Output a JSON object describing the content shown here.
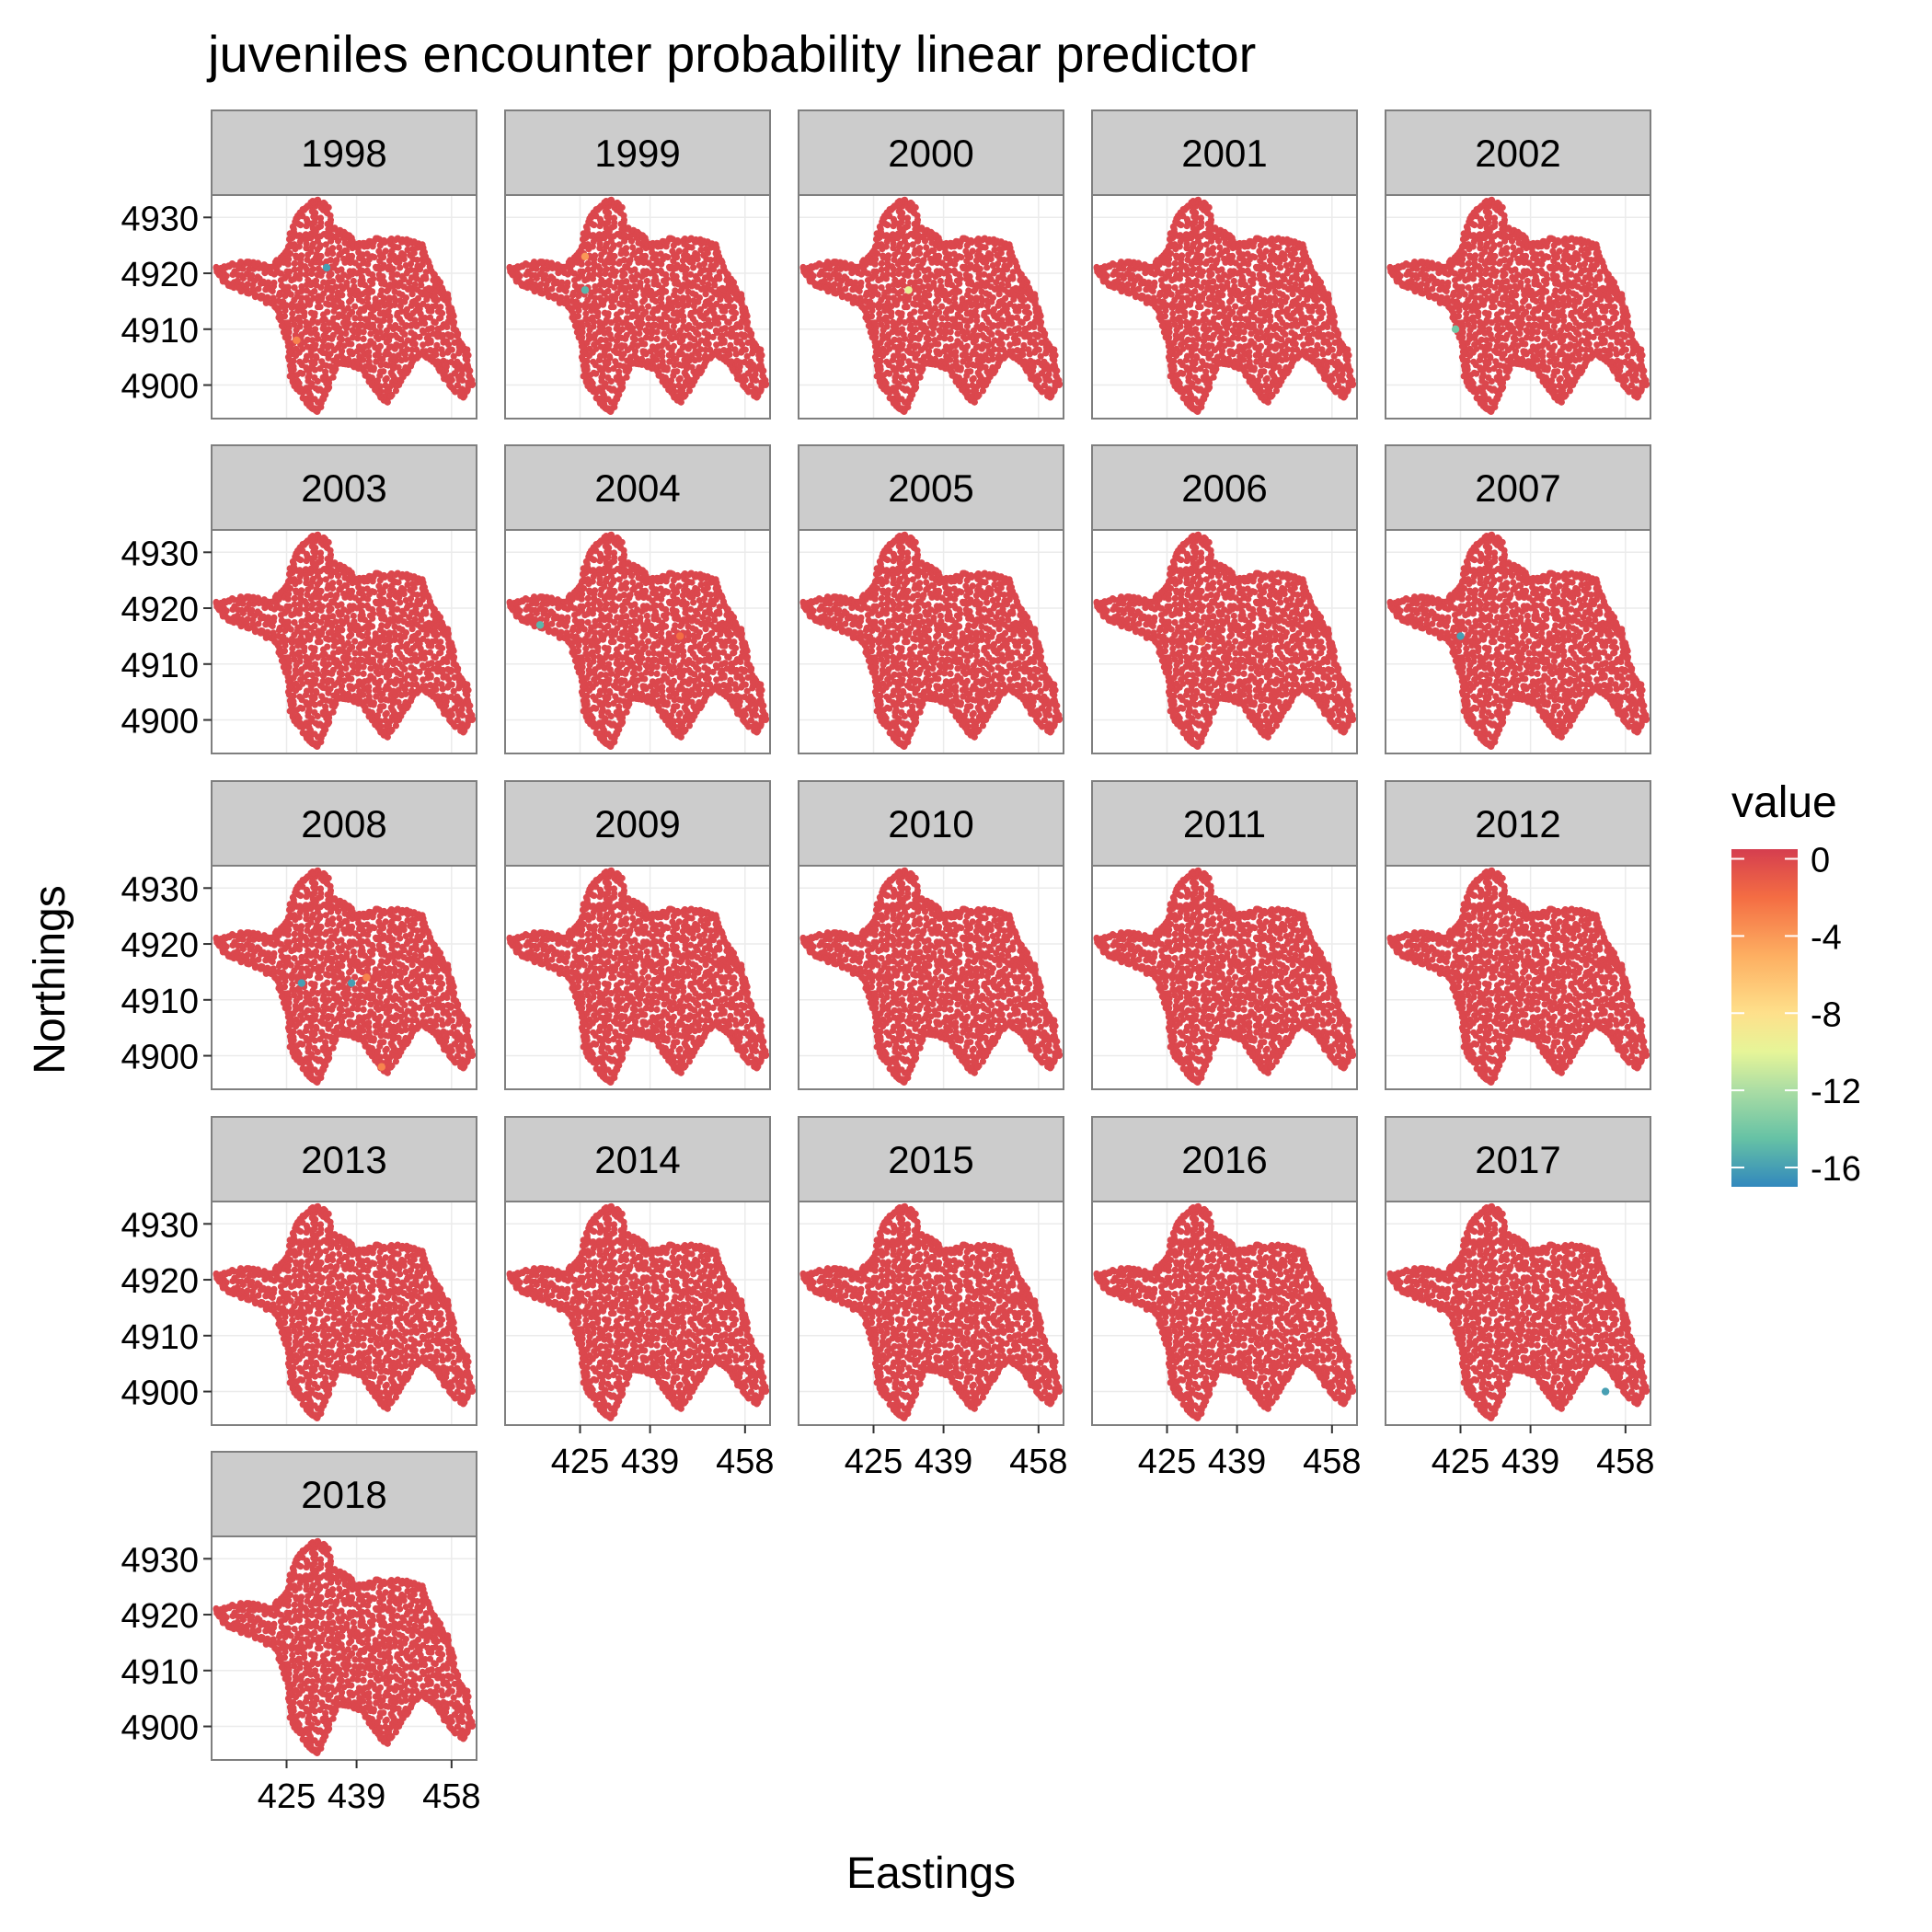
{
  "chart_data": {
    "type": "scatter",
    "title": "juveniles encounter probability linear predictor",
    "xlabel": "Eastings",
    "ylabel": "Northings",
    "panels": [
      "1998",
      "1999",
      "2000",
      "2001",
      "2002",
      "2003",
      "2004",
      "2005",
      "2006",
      "2007",
      "2008",
      "2009",
      "2010",
      "2011",
      "2012",
      "2013",
      "2014",
      "2015",
      "2016",
      "2017",
      "2018"
    ],
    "ncol": 5,
    "xlim": [
      410,
      463
    ],
    "ylim": [
      4894,
      4934
    ],
    "x_ticks": [
      425,
      439,
      458
    ],
    "x_tick_labels": [
      "425",
      "439",
      "458"
    ],
    "y_ticks": [
      4900,
      4910,
      4920,
      4930
    ],
    "y_tick_labels": [
      "4900",
      "4910",
      "4920",
      "4930"
    ],
    "base_value": 0,
    "region_outline": [
      [
        411,
        4921
      ],
      [
        417,
        4922
      ],
      [
        422,
        4921
      ],
      [
        425,
        4924
      ],
      [
        427,
        4930
      ],
      [
        429,
        4932
      ],
      [
        431,
        4933
      ],
      [
        433,
        4932
      ],
      [
        434,
        4928
      ],
      [
        437,
        4927
      ],
      [
        439,
        4925
      ],
      [
        443,
        4926
      ],
      [
        448,
        4926
      ],
      [
        452,
        4925
      ],
      [
        453,
        4922
      ],
      [
        455,
        4919
      ],
      [
        457,
        4916
      ],
      [
        458,
        4913
      ],
      [
        459,
        4909
      ],
      [
        461,
        4906
      ],
      [
        462,
        4900
      ],
      [
        460,
        4898
      ],
      [
        457,
        4901
      ],
      [
        455,
        4904
      ],
      [
        452,
        4906
      ],
      [
        449,
        4902
      ],
      [
        445,
        4897
      ],
      [
        443,
        4899
      ],
      [
        440,
        4903
      ],
      [
        437,
        4904
      ],
      [
        435,
        4904
      ],
      [
        433,
        4899
      ],
      [
        431,
        4895
      ],
      [
        429,
        4897
      ],
      [
        426,
        4901
      ],
      [
        425,
        4908
      ],
      [
        423,
        4914
      ],
      [
        419,
        4916
      ],
      [
        413,
        4918
      ],
      [
        411,
        4921
      ]
    ],
    "anomalies": [
      {
        "panel": "1998",
        "x": 433,
        "y": 4921,
        "value": -16
      },
      {
        "panel": "1998",
        "x": 427,
        "y": 4908,
        "value": -3
      },
      {
        "panel": "1999",
        "x": 426,
        "y": 4923,
        "value": -4
      },
      {
        "panel": "1999",
        "x": 426,
        "y": 4917,
        "value": -15
      },
      {
        "panel": "2000",
        "x": 432,
        "y": 4917,
        "value": -10
      },
      {
        "panel": "2002",
        "x": 424,
        "y": 4910,
        "value": -14
      },
      {
        "panel": "2004",
        "x": 417,
        "y": 4917,
        "value": -15
      },
      {
        "panel": "2004",
        "x": 445,
        "y": 4915,
        "value": -2
      },
      {
        "panel": "2006",
        "x": 432,
        "y": 4914,
        "value": -1
      },
      {
        "panel": "2007",
        "x": 425,
        "y": 4915,
        "value": -16
      },
      {
        "panel": "2008",
        "x": 428,
        "y": 4913,
        "value": -16
      },
      {
        "panel": "2008",
        "x": 438,
        "y": 4913,
        "value": -16
      },
      {
        "panel": "2008",
        "x": 441,
        "y": 4914,
        "value": -3
      },
      {
        "panel": "2008",
        "x": 444,
        "y": 4898,
        "value": -3
      },
      {
        "panel": "2017",
        "x": 454,
        "y": 4900,
        "value": -16
      }
    ],
    "legend": {
      "title": "value",
      "ticks": [
        0,
        -4,
        -8,
        -12,
        -16
      ],
      "tick_labels": [
        "0",
        "-4",
        "-8",
        "-12",
        "-16"
      ],
      "range": [
        -17,
        0.5
      ],
      "placement": "right",
      "gradient": [
        {
          "value": 0.5,
          "color": "#d53e4f"
        },
        {
          "value": -2,
          "color": "#f46d43"
        },
        {
          "value": -5,
          "color": "#fdae61"
        },
        {
          "value": -8,
          "color": "#fee08b"
        },
        {
          "value": -10,
          "color": "#e6f598"
        },
        {
          "value": -12,
          "color": "#abdda4"
        },
        {
          "value": -14.5,
          "color": "#66c2a5"
        },
        {
          "value": -17,
          "color": "#3288bd"
        }
      ]
    },
    "colors": {
      "base_point": "#d53e4f",
      "strip_fill": "#cccccc",
      "panel_border": "#7f7f7f",
      "grid": "#ebebeb"
    }
  }
}
